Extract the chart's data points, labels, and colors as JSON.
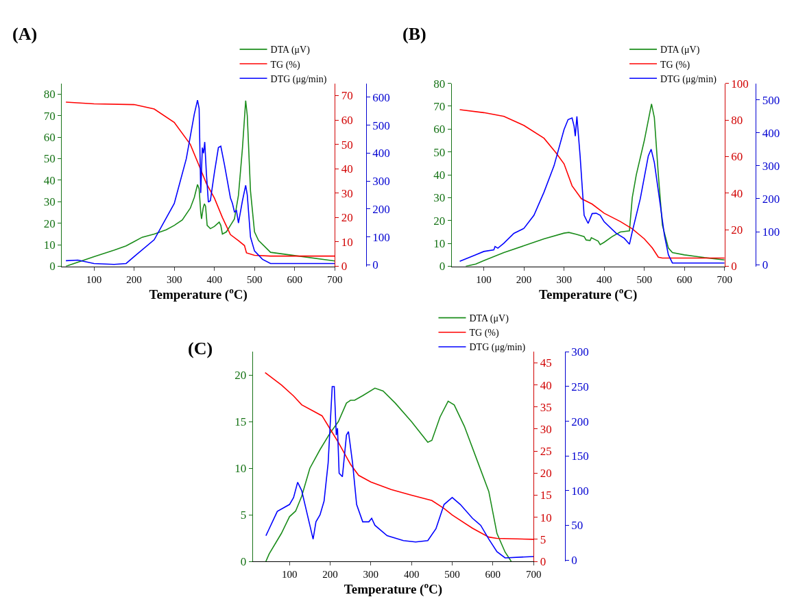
{
  "chart_data": [
    {
      "type": "line",
      "title": "(A)",
      "xlabel": "Temperature ($^{o}$C)",
      "legend": "top right",
      "xlim": [
        20,
        700
      ],
      "xticks": [
        100,
        200,
        300,
        400,
        500,
        600,
        700
      ],
      "ylim": [
        0,
        85
      ],
      "yticks": [
        0,
        10,
        20,
        30,
        40,
        50,
        60,
        70,
        80
      ],
      "y2lim": [
        0,
        75
      ],
      "y2ticks": [
        0,
        10,
        20,
        30,
        40,
        50,
        60,
        70
      ],
      "y3lim": [
        -5,
        650
      ],
      "y3ticks": [
        0,
        100,
        200,
        300,
        400,
        500,
        600
      ],
      "series": [
        {
          "name": "DTA (μV)",
          "color": "#1a8c1a",
          "axis": "y",
          "x": [
            30,
            100,
            150,
            180,
            200,
            220,
            250,
            280,
            300,
            320,
            340,
            350,
            358,
            362,
            366,
            368,
            372,
            375,
            378,
            382,
            390,
            400,
            412,
            416,
            420,
            430,
            440,
            450,
            460,
            470,
            478,
            482,
            490,
            500,
            510,
            540,
            600,
            700
          ],
          "values": [
            0,
            4.5,
            7.5,
            9.5,
            11.5,
            13.5,
            15,
            17,
            19,
            21.5,
            27,
            32,
            38,
            36,
            25,
            22,
            27,
            29,
            28,
            19,
            17.5,
            18.5,
            20.5,
            19,
            15,
            16,
            19,
            22,
            33,
            55,
            77,
            70,
            35,
            16,
            12,
            6.5,
            5,
            2.5
          ]
        },
        {
          "name": "TG (%)",
          "color": "#ff0000",
          "axis": "y2",
          "x": [
            30,
            100,
            200,
            250,
            300,
            340,
            360,
            380,
            400,
            420,
            440,
            460,
            475,
            480,
            500,
            540,
            700
          ],
          "values": [
            67.3,
            66.6,
            66.3,
            64.5,
            59,
            50,
            42,
            34,
            28,
            20,
            13,
            10.5,
            8.5,
            5.5,
            4.5,
            4.2,
            4.2
          ]
        },
        {
          "name": "DTG (μg/min)",
          "color": "#0000ff",
          "axis": "y3",
          "x": [
            30,
            60,
            100,
            150,
            180,
            200,
            250,
            300,
            330,
            350,
            358,
            362,
            366,
            370,
            373,
            376,
            380,
            385,
            390,
            400,
            410,
            416,
            425,
            440,
            445,
            450,
            455,
            460,
            470,
            478,
            482,
            490,
            500,
            520,
            540,
            700
          ],
          "values": [
            15,
            17,
            5,
            2,
            5,
            30,
            90,
            220,
            380,
            540,
            590,
            560,
            258,
            420,
            400,
            440,
            330,
            225,
            230,
            330,
            420,
            425,
            360,
            240,
            220,
            190,
            195,
            150,
            230,
            285,
            250,
            100,
            50,
            20,
            5,
            5
          ]
        }
      ]
    },
    {
      "type": "line",
      "title": "(B)",
      "xlabel": "Temperature ($^{o}$C)",
      "legend": "top right",
      "xlim": [
        20,
        700
      ],
      "xticks": [
        100,
        200,
        300,
        400,
        500,
        600,
        700
      ],
      "ylim": [
        0,
        80
      ],
      "yticks": [
        0,
        10,
        20,
        30,
        40,
        50,
        60,
        70,
        80
      ],
      "y2lim": [
        0,
        100
      ],
      "y2ticks": [
        0,
        20,
        40,
        60,
        80,
        100
      ],
      "y3lim": [
        -5,
        550
      ],
      "y3ticks": [
        0,
        100,
        200,
        300,
        400,
        500
      ],
      "series": [
        {
          "name": "DTA (μV)",
          "color": "#1a8c1a",
          "axis": "y",
          "x": [
            55,
            80,
            100,
            150,
            200,
            250,
            300,
            312,
            330,
            350,
            355,
            365,
            368,
            385,
            390,
            400,
            420,
            440,
            463,
            470,
            480,
            500,
            518,
            525,
            535,
            545,
            560,
            570,
            600,
            650,
            700
          ],
          "values": [
            0,
            1,
            2.5,
            6,
            9,
            12,
            14.5,
            14.8,
            14,
            13,
            11.5,
            11.3,
            12.5,
            11,
            9.5,
            10.5,
            13,
            15,
            15.5,
            30,
            40,
            55,
            71,
            65,
            40,
            18,
            8,
            6,
            5,
            3.8,
            2.8
          ]
        },
        {
          "name": "TG (%)",
          "color": "#ff0000",
          "axis": "y2",
          "x": [
            40,
            100,
            150,
            200,
            250,
            280,
            300,
            320,
            343,
            370,
            400,
            440,
            470,
            500,
            520,
            535,
            545,
            700
          ],
          "values": [
            85.6,
            84,
            82,
            77,
            70,
            62,
            56,
            44,
            37,
            34,
            29,
            24.5,
            20.5,
            15,
            10,
            5,
            4.5,
            4.5
          ]
        },
        {
          "name": "DTG (μg/min)",
          "color": "#0000ff",
          "axis": "y3",
          "x": [
            40,
            80,
            100,
            125,
            128,
            135,
            150,
            175,
            200,
            225,
            250,
            275,
            300,
            310,
            320,
            325,
            328,
            332,
            340,
            350,
            360,
            370,
            380,
            390,
            400,
            430,
            450,
            463,
            470,
            490,
            510,
            517,
            525,
            540,
            550,
            560,
            570,
            700
          ],
          "values": [
            10,
            30,
            40,
            45,
            55,
            50,
            65,
            95,
            110,
            150,
            220,
            300,
            410,
            440,
            445,
            420,
            390,
            450,
            330,
            150,
            125,
            155,
            156,
            150,
            130,
            95,
            80,
            62,
            100,
            200,
            330,
            350,
            310,
            180,
            90,
            30,
            5,
            5
          ]
        }
      ]
    },
    {
      "type": "line",
      "title": "(C)",
      "xlabel": "Temperature ($^{o}$C)",
      "legend": "top right",
      "xlim": [
        10,
        700
      ],
      "xticks": [
        100,
        200,
        300,
        400,
        500,
        600,
        700
      ],
      "ylim": [
        0,
        22.5
      ],
      "yticks": [
        0,
        5,
        10,
        15,
        20
      ],
      "y2lim": [
        0,
        47.5
      ],
      "y2ticks": [
        0,
        5,
        10,
        15,
        20,
        25,
        30,
        35,
        40,
        45
      ],
      "y3lim": [
        -2,
        300
      ],
      "y3ticks": [
        0,
        50,
        100,
        150,
        200,
        250,
        300
      ],
      "series": [
        {
          "name": "DTA (μV)",
          "color": "#1a8c1a",
          "axis": "y",
          "x": [
            42,
            50,
            80,
            100,
            115,
            130,
            150,
            175,
            200,
            220,
            240,
            250,
            260,
            280,
            310,
            330,
            360,
            400,
            440,
            450,
            470,
            490,
            505,
            530,
            560,
            590,
            610,
            630,
            645
          ],
          "values": [
            0,
            0.8,
            3,
            4.8,
            5.4,
            7,
            10,
            12,
            13.8,
            15,
            17,
            17.3,
            17.3,
            17.8,
            18.6,
            18.3,
            17,
            15,
            12.8,
            13,
            15.5,
            17.2,
            16.8,
            14.5,
            11,
            7.5,
            3,
            1,
            0
          ]
        },
        {
          "name": "TG (%)",
          "color": "#ff0000",
          "axis": "y2",
          "x": [
            40,
            80,
            110,
            130,
            160,
            180,
            200,
            220,
            250,
            270,
            300,
            350,
            400,
            450,
            480,
            500,
            550,
            590,
            610,
            700
          ],
          "values": [
            42.8,
            40,
            37.5,
            35.5,
            34,
            33,
            30,
            27,
            22,
            19.5,
            18,
            16.3,
            15,
            13.8,
            12,
            10.5,
            7.5,
            5.5,
            5.2,
            5
          ]
        },
        {
          "name": "DTG (μg/min)",
          "color": "#0000ff",
          "axis": "y3",
          "x": [
            42,
            50,
            70,
            100,
            110,
            120,
            130,
            140,
            150,
            158,
            165,
            175,
            185,
            195,
            205,
            210,
            215,
            218,
            222,
            230,
            240,
            245,
            255,
            265,
            280,
            295,
            302,
            310,
            340,
            380,
            410,
            440,
            460,
            480,
            500,
            520,
            550,
            570,
            590,
            610,
            630,
            700
          ],
          "values": [
            35,
            45,
            70,
            80,
            90,
            112,
            100,
            75,
            50,
            30,
            55,
            65,
            85,
            140,
            250,
            250,
            180,
            190,
            125,
            120,
            180,
            185,
            140,
            80,
            55,
            55,
            60,
            50,
            35,
            28,
            26,
            28,
            45,
            80,
            90,
            80,
            60,
            50,
            30,
            12,
            3,
            5
          ]
        }
      ]
    }
  ]
}
